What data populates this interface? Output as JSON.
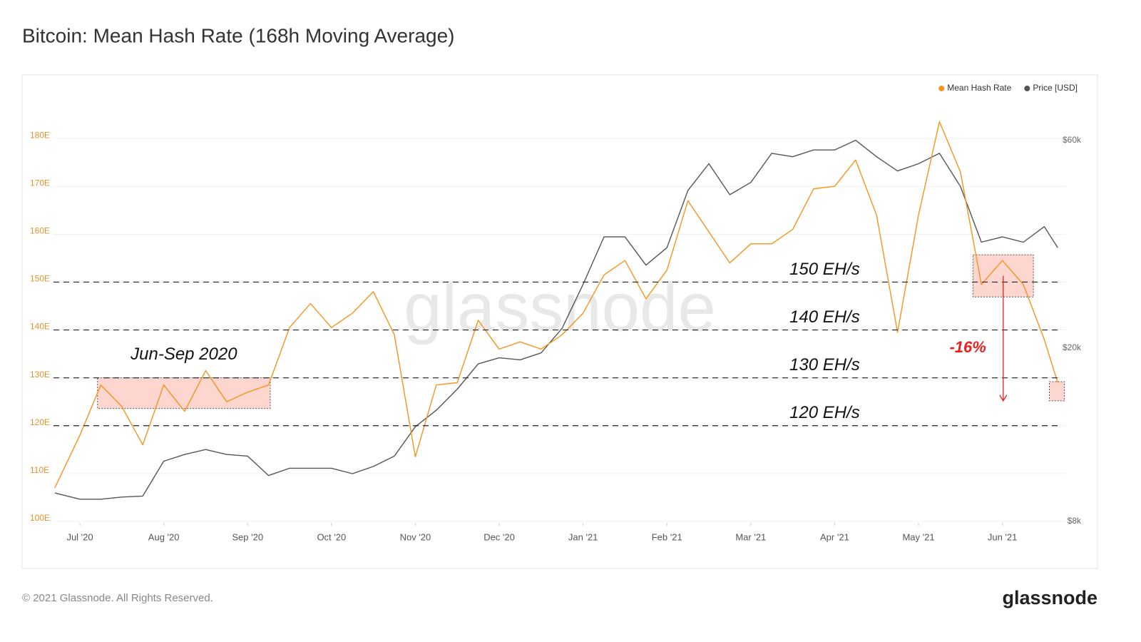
{
  "chart_data": {
    "type": "line",
    "title": "Bitcoin: Mean Hash Rate (168h Moving Average)",
    "x": [
      -0.3,
      0,
      0.25,
      0.5,
      0.75,
      1,
      1.25,
      1.5,
      1.75,
      2,
      2.25,
      2.5,
      2.75,
      3,
      3.25,
      3.5,
      3.75,
      4,
      4.25,
      4.5,
      4.75,
      5,
      5.25,
      5.5,
      5.75,
      6,
      6.25,
      6.5,
      6.75,
      7,
      7.25,
      7.5,
      7.75,
      8,
      8.25,
      8.5,
      8.75,
      9,
      9.25,
      9.5,
      9.75,
      10,
      10.25,
      10.5,
      10.75,
      11,
      11.25,
      11.5,
      11.66
    ],
    "xlim": [
      -0.315,
      11.76
    ],
    "xticks": [
      {
        "value": 0,
        "label": "Jul '20"
      },
      {
        "value": 1,
        "label": "Aug '20"
      },
      {
        "value": 2,
        "label": "Sep '20"
      },
      {
        "value": 3,
        "label": "Oct '20"
      },
      {
        "value": 4,
        "label": "Nov '20"
      },
      {
        "value": 5,
        "label": "Dec '20"
      },
      {
        "value": 6,
        "label": "Jan '21"
      },
      {
        "value": 7,
        "label": "Feb '21"
      },
      {
        "value": 8,
        "label": "Mar '21"
      },
      {
        "value": 9,
        "label": "Apr '21"
      },
      {
        "value": 10,
        "label": "May '21"
      },
      {
        "value": 11,
        "label": "Jun '21"
      }
    ],
    "ylim": [
      100,
      190
    ],
    "yticks": [
      {
        "value": 100,
        "label": "100E"
      },
      {
        "value": 110,
        "label": "110E"
      },
      {
        "value": 120,
        "label": "120E"
      },
      {
        "value": 130,
        "label": "130E"
      },
      {
        "value": 140,
        "label": "140E"
      },
      {
        "value": 150,
        "label": "150E"
      },
      {
        "value": 160,
        "label": "160E"
      },
      {
        "value": 170,
        "label": "170E"
      },
      {
        "value": 180,
        "label": "180E"
      }
    ],
    "y2lim": [
      8000,
      78000
    ],
    "y2log": true,
    "y2ticks": [
      {
        "value": 8000,
        "label": "$8k"
      },
      {
        "value": 20000,
        "label": "$20k"
      },
      {
        "value": 60000,
        "label": "$60k"
      }
    ],
    "grid": true,
    "legend": "top-right",
    "series": [
      {
        "name": "Mean Hash Rate",
        "color": "#f7931a",
        "values": [
          107,
          118,
          128.5,
          124,
          116,
          128.5,
          123,
          131.5,
          125,
          127,
          128.5,
          140.5,
          145.5,
          140.5,
          143.5,
          148,
          139,
          113.5,
          128.5,
          129,
          142,
          136,
          137.5,
          136,
          139,
          143.5,
          151.5,
          154.5,
          146.5,
          152.5,
          167,
          160.5,
          154,
          158,
          158,
          161,
          169.5,
          170,
          175.5,
          164,
          139.5,
          164,
          183.5,
          173,
          149.5,
          154.5,
          149.5,
          138,
          129
        ]
      },
      {
        "name": "Price [USD]",
        "color": "#555555",
        "axis": "y2",
        "values": [
          9300,
          9000,
          9000,
          9100,
          9150,
          11000,
          11400,
          11700,
          11400,
          11300,
          10200,
          10600,
          10600,
          10600,
          10300,
          10700,
          11300,
          13200,
          14400,
          16100,
          18400,
          19000,
          18800,
          19500,
          22200,
          28000,
          36000,
          36000,
          31000,
          34000,
          46000,
          53000,
          45000,
          48000,
          56000,
          55000,
          57000,
          57000,
          60000,
          55000,
          51000,
          53000,
          56000,
          47000,
          35000,
          36000,
          35000,
          38000,
          34000
        ]
      }
    ],
    "reference_lines": [
      {
        "value": 150,
        "label": "150 EH/s"
      },
      {
        "value": 140,
        "label": "140 EH/s"
      },
      {
        "value": 130,
        "label": "130 EH/s"
      },
      {
        "value": 120,
        "label": "120 EH/s"
      }
    ],
    "highlight_regions": [
      {
        "label": "Jun-Sep 2020",
        "x": [
          0.21,
          2.27
        ],
        "y": [
          123.6,
          130
        ]
      },
      {
        "x": [
          10.65,
          11.37
        ],
        "y": [
          146.9,
          155.7
        ]
      },
      {
        "x": [
          11.56,
          11.74
        ],
        "y": [
          125.2,
          129.2
        ]
      }
    ],
    "change": {
      "value": -16,
      "label": "-16%",
      "color": "#e8201e"
    },
    "watermark": "glassnode"
  },
  "footer": "© 2021 Glassnode. All Rights Reserved.",
  "logo": "glassnode"
}
